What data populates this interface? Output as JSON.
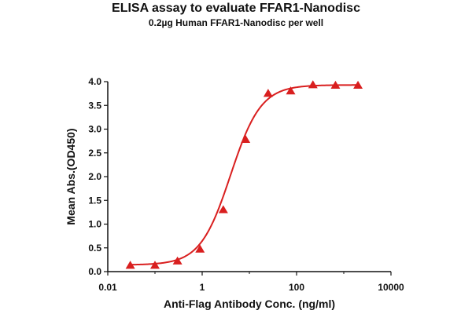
{
  "chart_data": {
    "type": "scatter",
    "title": "ELISA assay to evaluate FFAR1-Nanodisc",
    "subtitle": "0.2µg Human FFAR1-Nanodisc per well",
    "xlabel": "Anti-Flag Antibody Conc. (ng/ml)",
    "ylabel": "Mean Abs.(OD450)",
    "xscale": "log",
    "xlim": [
      0.01,
      10000
    ],
    "ylim": [
      0,
      4.0
    ],
    "xticks": [
      0.01,
      1,
      100,
      10000
    ],
    "xtick_labels": [
      "0.01",
      "1",
      "100",
      "10000"
    ],
    "yticks": [
      0,
      0.5,
      1.0,
      1.5,
      2.0,
      2.5,
      3.0,
      3.5,
      4.0
    ],
    "ytick_labels": [
      "0.0",
      "0.5",
      "1.0",
      "1.5",
      "2.0",
      "2.5",
      "3.0",
      "3.5",
      "4.0"
    ],
    "grid": false,
    "marker": "triangle",
    "color": "#d91f1f",
    "series": [
      {
        "x": [
          0.03,
          0.1,
          0.3,
          0.9,
          2.8,
          8.3,
          25,
          75,
          222,
          667,
          2000
        ],
        "y": [
          0.13,
          0.13,
          0.22,
          0.47,
          1.3,
          2.78,
          3.75,
          3.8,
          3.93,
          3.92,
          3.92
        ]
      }
    ],
    "fit_curve": {
      "model": "4PL",
      "bottom": 0.14,
      "top": 3.93,
      "ec50": 4.0,
      "hill": 1.35
    }
  }
}
